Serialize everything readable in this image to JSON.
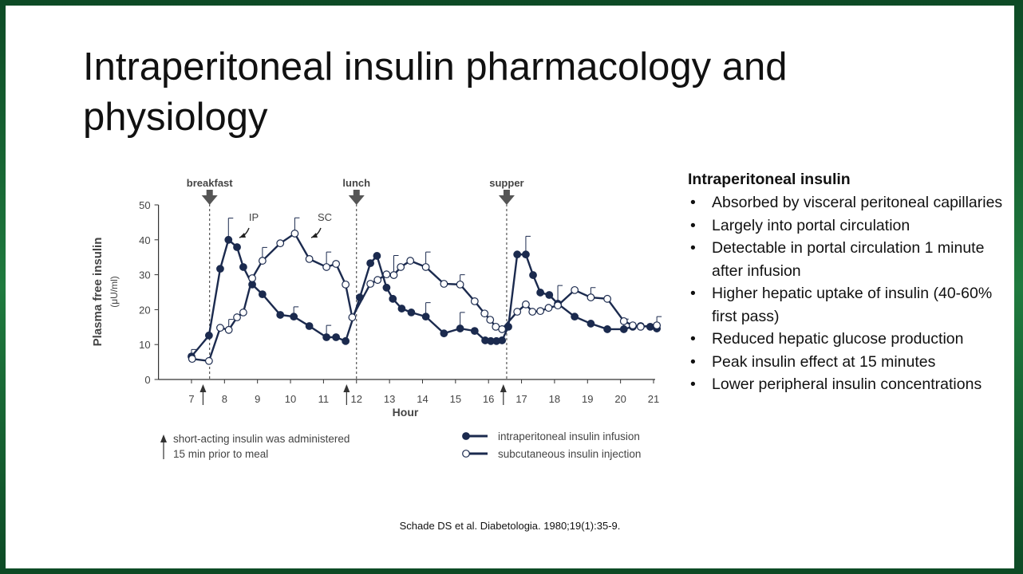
{
  "slide": {
    "title_lines": [
      "Intraperitoneal insulin pharmacology and",
      "physiology"
    ],
    "heading": "Intraperitoneal insulin",
    "bullets": [
      "Absorbed by visceral peritoneal capillaries",
      "Largely into portal circulation",
      "Detectable in portal circulation 1 minute after infusion",
      "Higher hepatic uptake of insulin (40-60% first pass)",
      "Reduced hepatic glucose production",
      "Peak insulin effect at 15 minutes",
      "Lower peripheral insulin concentrations"
    ],
    "citation": "Schade DS et al. Diabetologia. 1980;19(1):35-9."
  },
  "chart_data": {
    "type": "line",
    "x_label": "Hour",
    "y_label": "Plasma free insulin",
    "y_unit": "(μU/ml)",
    "xlim": [
      6,
      21
    ],
    "xticks": [
      7,
      8,
      9,
      10,
      11,
      12,
      13,
      14,
      15,
      16,
      17,
      18,
      19,
      20,
      21
    ],
    "ylim": [
      0,
      50
    ],
    "yticks": [
      0,
      10,
      20,
      30,
      40,
      50
    ],
    "meals": [
      {
        "label": "breakfast",
        "x": 7.55
      },
      {
        "label": "lunch",
        "x": 12.0
      },
      {
        "label": "supper",
        "x": 16.55
      }
    ],
    "injections": [
      7.35,
      11.7,
      16.45
    ],
    "note_lines": [
      "short-acting insulin was administered",
      "15 min prior to meal"
    ],
    "series": [
      {
        "name": "intraperitoneal insulin infusion",
        "short_name": "IP",
        "color": "#1b2a4e",
        "marker": "filled",
        "x": [
          7.0,
          7.53,
          7.87,
          8.12,
          8.38,
          8.57,
          8.84,
          9.15,
          9.69,
          10.1,
          10.57,
          11.09,
          11.38,
          11.67,
          12.1,
          12.42,
          12.62,
          12.91,
          13.1,
          13.37,
          13.66,
          14.1,
          14.65,
          15.14,
          15.58,
          15.9,
          16.07,
          16.24,
          16.41,
          16.6,
          16.87,
          17.13,
          17.35,
          17.57,
          17.84,
          18.1,
          18.61,
          19.1,
          19.6,
          20.1,
          20.37,
          20.61,
          20.9,
          21.1
        ],
        "values": [
          6.6,
          12.6,
          31.7,
          40,
          37.9,
          32.2,
          27.2,
          24.4,
          18.5,
          18,
          15.3,
          12.1,
          12.1,
          11,
          23.5,
          33.3,
          35.4,
          26.3,
          23.1,
          20.3,
          19.2,
          18,
          13.2,
          14.6,
          13.9,
          11.2,
          11,
          11,
          11.2,
          15.1,
          35.8,
          35.8,
          29.9,
          24.9,
          24.2,
          21.7,
          18,
          16,
          14.4,
          14.4,
          15.1,
          15.3,
          15.1,
          14.6
        ],
        "errors": [
          2,
          null,
          null,
          6.2,
          null,
          null,
          null,
          null,
          null,
          2.8,
          null,
          3.4,
          null,
          null,
          null,
          null,
          null,
          null,
          null,
          null,
          null,
          4,
          null,
          4.6,
          null,
          null,
          null,
          null,
          null,
          null,
          null,
          5.2,
          null,
          null,
          null,
          5.2,
          null,
          null,
          null,
          2.9,
          null,
          null,
          null,
          null
        ]
      },
      {
        "name": "subcutaneous insulin injection",
        "short_name": "SC",
        "color": "#1b2a4e",
        "marker": "open",
        "x": [
          7.02,
          7.53,
          7.87,
          8.13,
          8.38,
          8.57,
          8.84,
          9.15,
          9.69,
          10.13,
          10.57,
          11.09,
          11.38,
          11.67,
          11.87,
          12.42,
          12.64,
          12.91,
          13.13,
          13.34,
          13.63,
          14.1,
          14.65,
          15.14,
          15.58,
          15.88,
          16.05,
          16.22,
          16.41,
          16.87,
          17.13,
          17.33,
          17.57,
          17.82,
          18.1,
          18.61,
          19.1,
          19.6,
          20.1,
          20.37,
          20.61,
          21.1
        ],
        "values": [
          5.9,
          5.3,
          14.8,
          14.2,
          17.8,
          19.2,
          29,
          34,
          39,
          41.8,
          34.5,
          32.2,
          33.1,
          27.2,
          17.8,
          27.4,
          28.5,
          30.1,
          29.9,
          32.2,
          34,
          32.2,
          27.4,
          27.2,
          22.4,
          18.9,
          17.1,
          15.1,
          14.4,
          19.4,
          21.5,
          19.4,
          19.6,
          20.5,
          21.2,
          25.6,
          23.5,
          23.1,
          16.7,
          15.5,
          15.1,
          15.5
        ],
        "errors": [
          null,
          null,
          null,
          3,
          null,
          null,
          null,
          3.8,
          null,
          4.5,
          null,
          4.3,
          null,
          null,
          null,
          null,
          null,
          null,
          5.6,
          null,
          null,
          4.3,
          null,
          2.8,
          null,
          null,
          null,
          null,
          null,
          null,
          null,
          null,
          null,
          null,
          null,
          null,
          2.8,
          null,
          null,
          null,
          null,
          2.5
        ]
      }
    ]
  }
}
